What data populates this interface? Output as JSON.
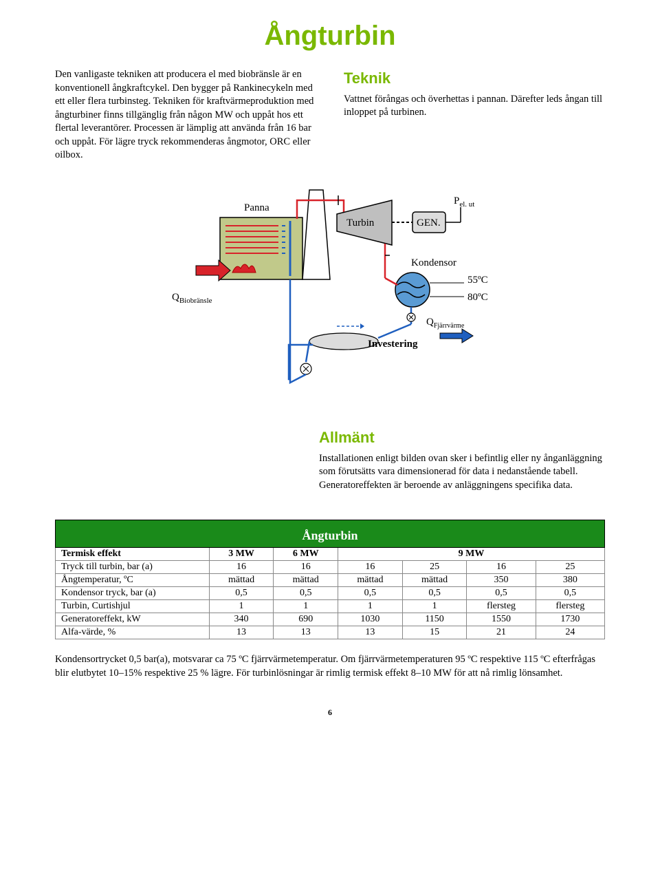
{
  "page": {
    "title": "Ångturbin",
    "title_color": "#7ab800",
    "page_number": "6"
  },
  "intro": {
    "left": "Den vanligaste tekniken att producera el med biobränsle är en konventionell ångkraftcykel. Den bygger på Rankinecykeln med ett eller flera turbinsteg. Tekniken för kraftvärmeproduktion med ångturbiner finns tillgänglig från någon MW och uppåt hos ett flertal leverantörer. Processen är lämplig att använda från 16 bar och uppåt. För lägre tryck rekommenderas ångmotor, ORC eller oilbox.",
    "right_heading": "Teknik",
    "right_heading_color": "#7ab800",
    "right_body": "Vattnet förångas och överhettas i pannan. Därefter leds ångan till inloppet på turbinen."
  },
  "diagram": {
    "labels": {
      "panna": "Panna",
      "turbin": "Turbin",
      "gen": "GEN.",
      "kondensor": "Kondensor",
      "investering": "Investering",
      "q_bio": "Q",
      "q_bio_sub": "Biobränsle",
      "p_el": "P",
      "p_el_sub": "el. ut",
      "q_fj": "Q",
      "q_fj_sub": "Fjärrvärme",
      "t_out": "55ºC",
      "t_in": "80ºC"
    },
    "colors": {
      "steam_line": "#d8232a",
      "water_line": "#1f5fbf",
      "investering_line": "#1f5fbf",
      "panna_fill": "#c1c98a",
      "turbine_fill": "#bfbfbf",
      "gen_fill": "#dcdcdc",
      "cond_fill": "#5a9bd4",
      "arrow_red": "#d8232a",
      "arrow_blue": "#1f5fbf",
      "outline": "#000000"
    }
  },
  "allmant": {
    "heading": "Allmänt",
    "heading_color": "#7ab800",
    "body": "Installationen enligt bilden ovan sker i befintlig eller ny ånganläggning som förutsätts vara dimensionerad för data i nedanstående tabell. Generatoreffekten är beroende av anläggningens specifika data."
  },
  "table": {
    "title": "Ångturbin",
    "head_bg": "#1a8a1a",
    "left_col_width": "28%",
    "header_row": [
      "Termisk effekt",
      "3 MW",
      "6 MW",
      "9 MW"
    ],
    "header_spans": [
      1,
      1,
      1,
      4
    ],
    "rows": [
      {
        "label": "Tryck till turbin, bar (a)",
        "cells": [
          "16",
          "16",
          "16",
          "25",
          "16",
          "25"
        ]
      },
      {
        "label": "Ångtemperatur, ºC",
        "cells": [
          "mättad",
          "mättad",
          "mättad",
          "mättad",
          "350",
          "380"
        ]
      },
      {
        "label": "Kondensor tryck, bar (a)",
        "cells": [
          "0,5",
          "0,5",
          "0,5",
          "0,5",
          "0,5",
          "0,5"
        ]
      },
      {
        "label": "Turbin, Curtishjul",
        "cells": [
          "1",
          "1",
          "1",
          "1",
          "flersteg",
          "flersteg"
        ]
      },
      {
        "label": "Generatoreffekt, kW",
        "cells": [
          "340",
          "690",
          "1030",
          "1150",
          "1550",
          "1730"
        ]
      },
      {
        "label": "Alfa-värde, %",
        "cells": [
          "13",
          "13",
          "13",
          "15",
          "21",
          "24"
        ]
      }
    ]
  },
  "footnote": "Kondensortrycket 0,5 bar(a), motsvarar ca 75 ºC fjärrvärmetemperatur. Om fjärrvärmetemperaturen 95 ºC respektive 115 ºC efterfrågas blir elutbytet 10–15% respektive 25 % lägre. För turbinlösningar är rimlig termisk effekt 8–10 MW för att nå rimlig lönsamhet."
}
